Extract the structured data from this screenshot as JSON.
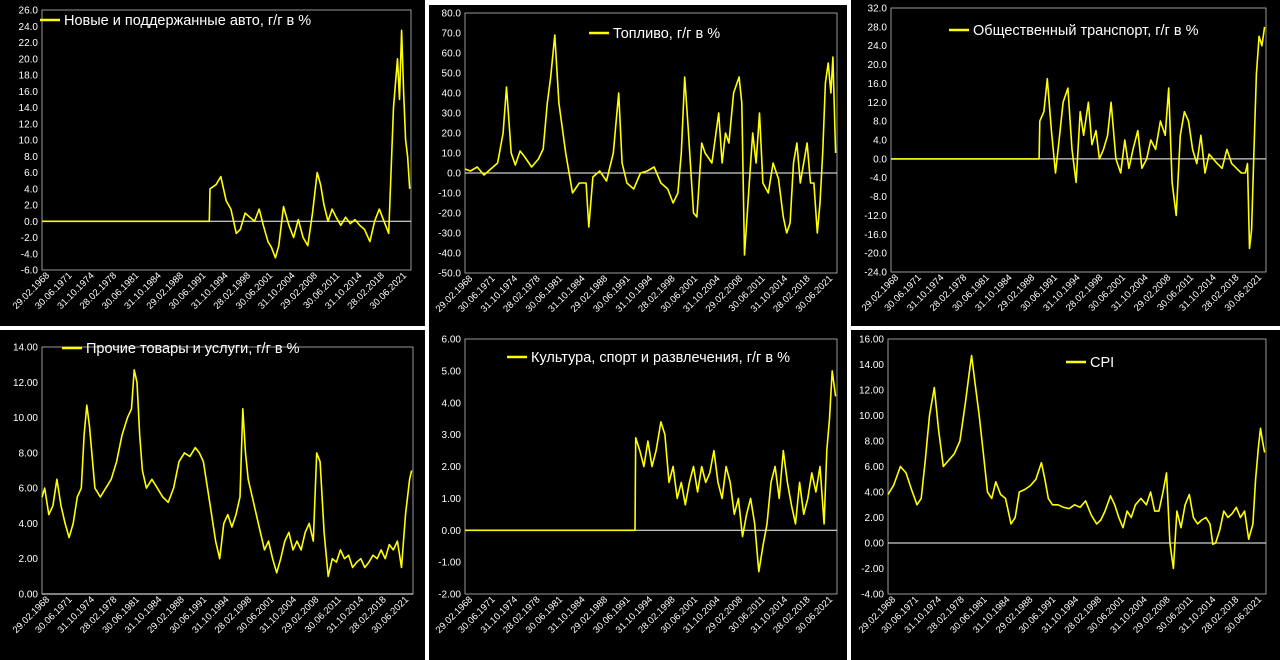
{
  "chart_data": [
    {
      "type": "line",
      "title": "Новые и поддержанные авто, г/г в %",
      "ylim": [
        -6,
        26
      ],
      "yticks": [
        "26.0",
        "24.0",
        "22.0",
        "20.0",
        "18.0",
        "16.0",
        "14.0",
        "12.0",
        "10.0",
        "8.0",
        "6.0",
        "4.0",
        "2.0",
        "0.0",
        "-2.0",
        "-4.0",
        "-6.0"
      ],
      "xticks": [
        "29.02.1968",
        "30.06.1971",
        "31.10.1974",
        "28.02.1978",
        "30.06.1981",
        "31.10.1984",
        "29.02.1988",
        "30.06.1991",
        "31.10.1994",
        "28.02.1998",
        "30.06.2001",
        "31.10.2004",
        "29.02.2008",
        "30.06.2011",
        "31.10.2014",
        "28.02.2018",
        "30.06.2021"
      ],
      "x": [
        1968.2,
        1993.0,
        1993.1,
        1994.0,
        1994.7,
        1995.5,
        1996.2,
        1997.0,
        1997.6,
        1998.3,
        1999.0,
        1999.7,
        2000.4,
        2001.0,
        2001.7,
        2002.2,
        2002.8,
        2003.3,
        2004.0,
        2004.8,
        2005.5,
        2006.2,
        2006.9,
        2007.6,
        2008.3,
        2009.0,
        2009.5,
        2010.0,
        2010.6,
        2011.2,
        2011.8,
        2012.5,
        2013.2,
        2013.9,
        2014.6,
        2015.3,
        2016.0,
        2016.8,
        2017.5,
        2018.2,
        2018.9,
        2019.6,
        2020.3,
        2020.9,
        2021.2,
        2021.5,
        2021.8,
        2022.1,
        2022.4,
        2022.7
      ],
      "values": [
        0,
        0,
        4,
        4.5,
        5.5,
        2.5,
        1.5,
        -1.5,
        -1,
        1,
        0.5,
        0,
        1.5,
        -0.5,
        -2.5,
        -3.2,
        -4.5,
        -3.0,
        1.8,
        -0.5,
        -2.0,
        0.2,
        -2.0,
        -3.0,
        1.0,
        6.0,
        4.5,
        2.0,
        0.0,
        1.5,
        0.5,
        -0.5,
        0.5,
        -0.3,
        0.2,
        -0.5,
        -1.0,
        -2.5,
        0.0,
        1.5,
        0.0,
        -1.5,
        14.0,
        20.0,
        15.0,
        23.5,
        16.0,
        10.0,
        8.0,
        4.0
      ],
      "color": "#ffff00"
    },
    {
      "type": "line",
      "title": "Топливо, г/г в %",
      "ylim": [
        -50,
        80
      ],
      "yticks": [
        "80.0",
        "70.0",
        "60.0",
        "50.0",
        "40.0",
        "30.0",
        "20.0",
        "10.0",
        "0.0",
        "-10.0",
        "-20.0",
        "-30.0",
        "-40.0",
        "-50.0"
      ],
      "xticks": [
        "29.02.1968",
        "30.06.1971",
        "31.10.1974",
        "28.02.1978",
        "30.06.1981",
        "31.10.1984",
        "29.02.1988",
        "30.06.1991",
        "31.10.1994",
        "28.02.1998",
        "30.06.2001",
        "31.10.2004",
        "29.02.2008",
        "30.06.2011",
        "31.10.2014",
        "28.02.2018",
        "30.06.2021"
      ],
      "x": [
        1968.2,
        1969.0,
        1970.0,
        1971.0,
        1972.0,
        1973.0,
        1973.8,
        1974.3,
        1975.0,
        1975.6,
        1976.3,
        1977.0,
        1978.0,
        1979.0,
        1979.7,
        1980.3,
        1980.8,
        1981.4,
        1982.0,
        1983.0,
        1984.0,
        1985.0,
        1986.0,
        1986.4,
        1987.0,
        1988.0,
        1989.0,
        1990.0,
        1990.8,
        1991.3,
        1992.0,
        1993.0,
        1994.0,
        1995.0,
        1996.0,
        1997.0,
        1998.0,
        1998.8,
        1999.5,
        2000.0,
        2000.5,
        2001.0,
        2001.8,
        2002.3,
        2003.0,
        2003.5,
        2004.5,
        2005.5,
        2006.0,
        2006.5,
        2007.0,
        2007.7,
        2008.5,
        2008.9,
        2009.3,
        2010.0,
        2010.5,
        2011.0,
        2011.5,
        2012.0,
        2012.8,
        2013.5,
        2014.3,
        2015.0,
        2015.5,
        2016.0,
        2016.5,
        2017.0,
        2017.5,
        2018.0,
        2018.5,
        2019.0,
        2019.5,
        2020.0,
        2020.4,
        2020.8,
        2021.2,
        2021.6,
        2022.0,
        2022.3,
        2022.7
      ],
      "values": [
        2,
        1,
        3,
        -1,
        2,
        5,
        20,
        43,
        10,
        4,
        11,
        8,
        3,
        7,
        12,
        35,
        48,
        69,
        35,
        10,
        -10,
        -5,
        -5,
        -27,
        -2,
        1,
        -4,
        10,
        40,
        5,
        -5,
        -8,
        0,
        1,
        3,
        -5,
        -8,
        -15,
        -10,
        10,
        48,
        23,
        -20,
        -22,
        15,
        10,
        5,
        30,
        5,
        20,
        15,
        40,
        48,
        35,
        -41,
        -5,
        20,
        5,
        30,
        -5,
        -10,
        5,
        -3,
        -22,
        -30,
        -25,
        5,
        15,
        -5,
        5,
        15,
        -5,
        -5,
        -30,
        -15,
        10,
        45,
        55,
        40,
        58,
        10
      ],
      "color": "#ffff00"
    },
    {
      "type": "line",
      "title": "Общественный транспорт, г/г в %",
      "ylim": [
        -24,
        32
      ],
      "yticks": [
        "32.0",
        "28.0",
        "24.0",
        "20.0",
        "16.0",
        "12.0",
        "8.0",
        "4.0",
        "0.0",
        "-4.0",
        "-8.0",
        "-12.0",
        "-16.0",
        "-20.0",
        "-24.0"
      ],
      "xticks": [
        "29.02.1968",
        "30.06.1971",
        "31.10.1974",
        "28.02.1978",
        "30.06.1981",
        "31.10.1984",
        "29.02.1988",
        "30.06.1991",
        "31.10.1994",
        "28.02.1998",
        "30.06.2001",
        "31.10.2004",
        "29.02.2008",
        "30.06.2011",
        "31.10.2014",
        "28.02.2018",
        "30.06.2021"
      ],
      "x": [
        1968.2,
        1989.8,
        1989.9,
        1990.5,
        1991.0,
        1991.6,
        1992.2,
        1992.8,
        1993.3,
        1994.0,
        1994.6,
        1995.2,
        1995.8,
        1996.3,
        1997.0,
        1997.5,
        1998.1,
        1998.6,
        1999.2,
        1999.8,
        2000.3,
        2001.0,
        2001.7,
        2002.3,
        2002.9,
        2003.5,
        2004.2,
        2004.8,
        2005.5,
        2006.1,
        2006.8,
        2007.5,
        2008.2,
        2008.7,
        2009.2,
        2009.8,
        2010.4,
        2011.0,
        2011.6,
        2012.2,
        2012.8,
        2013.4,
        2014.0,
        2014.6,
        2015.2,
        2015.8,
        2016.5,
        2017.2,
        2017.9,
        2018.6,
        2019.3,
        2019.9,
        2020.2,
        2020.5,
        2020.8,
        2021.1,
        2021.5,
        2021.9,
        2022.3,
        2022.7
      ],
      "values": [
        0,
        0,
        8,
        10,
        17,
        6,
        -3,
        5,
        12,
        15,
        2,
        -5,
        10,
        5,
        12,
        3,
        6,
        0,
        2,
        5,
        12,
        0,
        -3,
        4,
        -2,
        2,
        6,
        -2,
        0,
        4,
        2,
        8,
        5,
        15,
        -5,
        -12,
        5,
        10,
        8,
        2,
        -1,
        5,
        -3,
        1,
        0,
        -1,
        -2,
        2,
        -1,
        -2,
        -3,
        -3,
        -1,
        -19,
        -15,
        0,
        18,
        26,
        24,
        28
      ],
      "color": "#ffff00"
    },
    {
      "type": "line",
      "title": "Прочие товары и услуги, г/г в %",
      "ylim": [
        0,
        14
      ],
      "yticks": [
        "14.00",
        "12.00",
        "10.00",
        "8.00",
        "6.00",
        "4.00",
        "2.00",
        "0.00"
      ],
      "xticks": [
        "29.02.1968",
        "30.06.1971",
        "31.10.1974",
        "28.02.1978",
        "30.06.1981",
        "31.10.1984",
        "29.02.1988",
        "30.06.1991",
        "31.10.1994",
        "28.02.1998",
        "30.06.2001",
        "31.10.2004",
        "29.02.2008",
        "30.06.2011",
        "31.10.2014",
        "28.02.2018",
        "30.06.2021"
      ],
      "x": [
        1968.2,
        1968.6,
        1969.2,
        1969.8,
        1970.4,
        1971.0,
        1971.6,
        1972.2,
        1972.8,
        1973.4,
        1974.0,
        1974.4,
        1974.8,
        1975.2,
        1976.0,
        1976.8,
        1977.6,
        1978.4,
        1979.2,
        1980.0,
        1980.8,
        1981.4,
        1981.8,
        1982.2,
        1982.6,
        1983.0,
        1983.6,
        1984.4,
        1985.2,
        1986.0,
        1986.8,
        1987.6,
        1988.4,
        1989.2,
        1990.0,
        1990.8,
        1991.4,
        1992.0,
        1992.6,
        1993.2,
        1993.8,
        1994.4,
        1995.0,
        1995.6,
        1996.2,
        1996.8,
        1997.4,
        1997.8,
        1998.2,
        1998.6,
        1999.2,
        1999.8,
        2000.4,
        2001.0,
        2001.6,
        2002.2,
        2002.8,
        2003.4,
        2004.0,
        2004.6,
        2005.2,
        2005.8,
        2006.4,
        2007.0,
        2007.6,
        2008.2,
        2008.7,
        2009.2,
        2009.8,
        2010.4,
        2011.0,
        2011.6,
        2012.2,
        2012.8,
        2013.4,
        2014.0,
        2014.6,
        2015.2,
        2015.8,
        2016.4,
        2017.0,
        2017.6,
        2018.2,
        2018.8,
        2019.4,
        2020.0,
        2020.6,
        2021.2,
        2021.8,
        2022.4,
        2022.7
      ],
      "values": [
        5.5,
        6.0,
        4.5,
        5.0,
        6.5,
        5.0,
        4.0,
        3.2,
        4.0,
        5.5,
        6.0,
        9.0,
        10.7,
        9.5,
        6.0,
        5.5,
        6.0,
        6.5,
        7.5,
        9.0,
        10.0,
        10.5,
        12.7,
        12.0,
        9.0,
        7.0,
        6.0,
        6.5,
        6.0,
        5.5,
        5.2,
        6.0,
        7.5,
        8.0,
        7.8,
        8.3,
        8.0,
        7.5,
        6.0,
        4.5,
        3.0,
        2.0,
        4.0,
        4.5,
        3.8,
        4.5,
        5.5,
        10.5,
        8.0,
        6.5,
        5.5,
        4.5,
        3.5,
        2.5,
        3.0,
        2.0,
        1.2,
        2.0,
        3.0,
        3.5,
        2.5,
        3.0,
        2.5,
        3.5,
        4.0,
        3.0,
        8.0,
        7.5,
        3.5,
        1.0,
        2.0,
        1.8,
        2.5,
        2.0,
        2.2,
        1.5,
        1.8,
        2.0,
        1.5,
        1.8,
        2.2,
        2.0,
        2.5,
        2.0,
        2.8,
        2.5,
        3.0,
        1.5,
        4.5,
        6.5,
        7.0
      ],
      "color": "#ffff00"
    },
    {
      "type": "line",
      "title": "Культура, спорт и развлечения, г/г в %",
      "ylim": [
        -2,
        6
      ],
      "yticks": [
        "6.00",
        "5.00",
        "4.00",
        "3.00",
        "2.00",
        "1.00",
        "0.00",
        "-1.00",
        "-2.00"
      ],
      "xticks": [
        "29.02.1968",
        "30.06.1971",
        "31.10.1974",
        "28.02.1978",
        "30.06.1981",
        "31.10.1984",
        "29.02.1988",
        "30.06.1991",
        "31.10.1994",
        "28.02.1998",
        "30.06.2001",
        "31.10.2004",
        "29.02.2008",
        "30.06.2011",
        "31.10.2014",
        "28.02.2018",
        "30.06.2021"
      ],
      "x": [
        1968.2,
        1993.2,
        1993.3,
        1993.9,
        1994.5,
        1995.1,
        1995.7,
        1996.3,
        1997.0,
        1997.6,
        1998.2,
        1998.8,
        1999.4,
        2000.0,
        2000.6,
        2001.2,
        2001.8,
        2002.4,
        2003.0,
        2003.6,
        2004.2,
        2004.8,
        2005.4,
        2006.0,
        2006.6,
        2007.2,
        2007.8,
        2008.4,
        2009.0,
        2009.6,
        2010.2,
        2010.8,
        2011.4,
        2012.0,
        2012.6,
        2013.2,
        2013.8,
        2014.4,
        2015.0,
        2015.6,
        2016.2,
        2016.8,
        2017.4,
        2018.0,
        2018.6,
        2019.2,
        2019.8,
        2020.4,
        2021.0,
        2021.4,
        2021.8,
        2022.2,
        2022.7
      ],
      "values": [
        0,
        0,
        2.9,
        2.5,
        2.0,
        2.8,
        2.0,
        2.5,
        3.4,
        3.0,
        1.5,
        2.0,
        1.0,
        1.5,
        0.8,
        1.5,
        2.0,
        1.2,
        2.0,
        1.5,
        1.8,
        2.5,
        1.5,
        1.0,
        2.0,
        1.5,
        0.5,
        1.0,
        -0.2,
        0.5,
        1.0,
        0.2,
        -1.3,
        -0.5,
        0.2,
        1.5,
        2.0,
        1.0,
        2.5,
        1.5,
        0.8,
        0.2,
        1.5,
        0.5,
        1.0,
        1.8,
        1.2,
        2.0,
        0.2,
        2.5,
        3.5,
        5.0,
        4.2
      ],
      "color": "#ffff00"
    },
    {
      "type": "line",
      "title": "CPI",
      "ylim": [
        -4,
        16
      ],
      "yticks": [
        "16.00",
        "14.00",
        "12.00",
        "10.00",
        "8.00",
        "6.00",
        "4.00",
        "2.00",
        "0.00",
        "-2.00",
        "-4.00"
      ],
      "xticks": [
        "29.02.1968",
        "30.06.1971",
        "31.10.1974",
        "28.02.1978",
        "30.06.1981",
        "31.10.1984",
        "29.02.1988",
        "30.06.1991",
        "31.10.1994",
        "28.02.1998",
        "30.06.2001",
        "31.10.2004",
        "29.02.2008",
        "30.06.2011",
        "31.10.2014",
        "28.02.2018",
        "30.06.2021"
      ],
      "x": [
        1968.2,
        1969.0,
        1970.0,
        1970.8,
        1971.6,
        1972.4,
        1973.0,
        1973.6,
        1974.2,
        1974.9,
        1975.5,
        1976.2,
        1977.0,
        1977.8,
        1978.6,
        1979.4,
        1980.0,
        1980.3,
        1980.8,
        1981.4,
        1982.0,
        1982.6,
        1983.2,
        1983.8,
        1984.5,
        1985.2,
        1986.0,
        1986.6,
        1987.2,
        1988.0,
        1988.8,
        1989.6,
        1990.4,
        1990.9,
        1991.4,
        1992.0,
        1992.8,
        1993.6,
        1994.4,
        1995.2,
        1996.0,
        1996.8,
        1997.6,
        1998.4,
        1999.0,
        1999.6,
        2000.4,
        2001.0,
        2001.6,
        2002.2,
        2002.8,
        2003.4,
        2004.0,
        2004.8,
        2005.6,
        2006.2,
        2006.8,
        2007.4,
        2008.0,
        2008.5,
        2009.0,
        2009.5,
        2010.0,
        2010.6,
        2011.2,
        2011.8,
        2012.4,
        2013.0,
        2013.6,
        2014.2,
        2014.8,
        2015.2,
        2015.6,
        2016.2,
        2016.8,
        2017.4,
        2018.0,
        2018.6,
        2019.2,
        2019.8,
        2020.4,
        2021.0,
        2021.4,
        2021.8,
        2022.1,
        2022.4,
        2022.7
      ],
      "values": [
        3.8,
        4.5,
        6.0,
        5.5,
        4.2,
        3.0,
        3.5,
        6.5,
        10.0,
        12.2,
        9.0,
        6.0,
        6.5,
        7.0,
        8.0,
        11.0,
        13.5,
        14.7,
        12.5,
        10.0,
        7.0,
        4.0,
        3.5,
        4.8,
        3.8,
        3.5,
        1.5,
        2.0,
        4.0,
        4.2,
        4.5,
        5.0,
        6.3,
        5.0,
        3.5,
        3.0,
        3.0,
        2.8,
        2.7,
        3.0,
        2.8,
        3.3,
        2.2,
        1.5,
        1.8,
        2.5,
        3.7,
        3.0,
        2.0,
        1.2,
        2.5,
        2.0,
        3.0,
        3.5,
        3.0,
        4.0,
        2.5,
        2.5,
        4.0,
        5.5,
        0.0,
        -2.0,
        2.5,
        1.2,
        3.0,
        3.8,
        2.0,
        1.5,
        1.8,
        2.0,
        1.5,
        -0.1,
        0.0,
        1.0,
        2.5,
        2.0,
        2.3,
        2.8,
        2.0,
        2.5,
        0.3,
        1.5,
        5.0,
        7.5,
        9.0,
        8.0,
        7.1
      ],
      "color": "#ffff00"
    }
  ]
}
